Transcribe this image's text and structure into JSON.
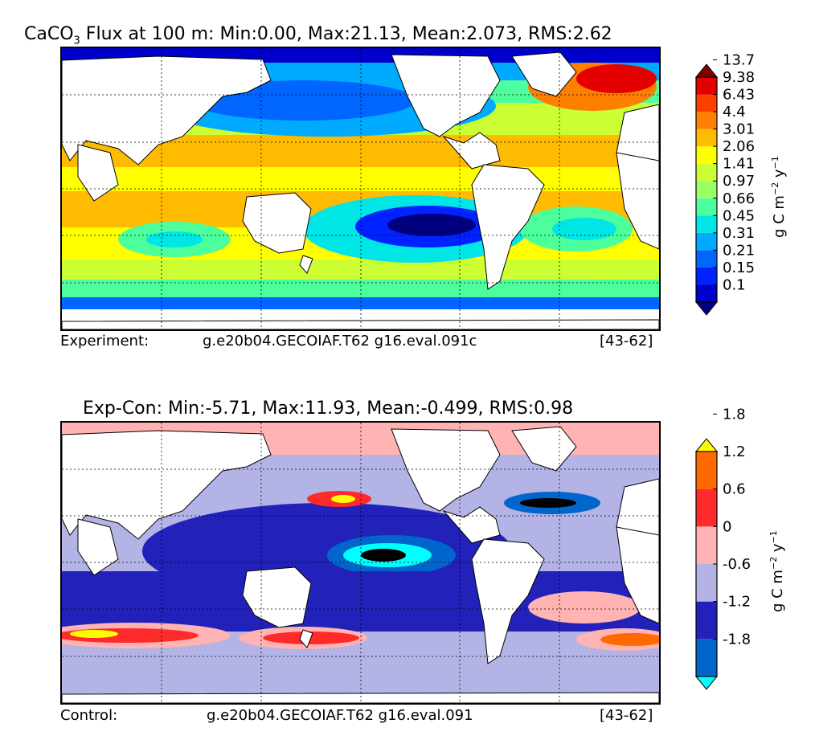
{
  "chart_data": [
    {
      "type": "heatmap",
      "title": {
        "prefix": "CaCO",
        "subscript": "3",
        "rest": " Flux at 100 m: Min:0.00, Max:21.13, Mean:2.073, RMS:2.62"
      },
      "footer": {
        "label": "Experiment:",
        "case": "g.e20b04.GECOIAF.T62 g16.eval.091c",
        "years": "[43-62]"
      },
      "colorbar": {
        "label_parts": [
          "g C m",
          "−2",
          " y",
          "−1"
        ],
        "ticks": [
          "0.1",
          "0.15",
          "0.21",
          "0.31",
          "0.45",
          "0.66",
          "0.97",
          "1.41",
          "2.06",
          "3.01",
          "4.4",
          "6.43",
          "9.38",
          "13.7"
        ],
        "colors": [
          "#00007f",
          "#0000cc",
          "#0022ff",
          "#0066ff",
          "#00aaff",
          "#00e5e5",
          "#4cff9c",
          "#99ff66",
          "#ccff33",
          "#ffff00",
          "#ffbb00",
          "#ff7f00",
          "#ff3f00",
          "#e50000",
          "#7f0000"
        ]
      },
      "grid": "dashed",
      "colors": {
        "ocean_base": "#ffd400",
        "land": "#ffffff"
      }
    },
    {
      "type": "heatmap",
      "title": {
        "prefix": "",
        "subscript": "",
        "rest": "Exp-Con: Min:-5.71, Max:11.93, Mean:-0.499, RMS:0.98"
      },
      "footer": {
        "label": "Control:",
        "case": "g.e20b04.GECOIAF.T62 g16.eval.091",
        "years": "[43-62]"
      },
      "colorbar": {
        "label_parts": [
          "g C m",
          "−2",
          " y",
          "−1"
        ],
        "ticks": [
          "-1.8",
          "-1.2",
          "-0.6",
          "0",
          "0.6",
          "1.2",
          "1.8"
        ],
        "colors": [
          "#00ffff",
          "#0066cc",
          "#2222bb",
          "#b3b3e6",
          "#ffb3b3",
          "#ff2a2a",
          "#ff6a00",
          "#ffff00"
        ]
      },
      "grid": "dashed",
      "colors": {
        "ocean_base": "#b3b3e6",
        "land": "#ffffff"
      }
    }
  ]
}
